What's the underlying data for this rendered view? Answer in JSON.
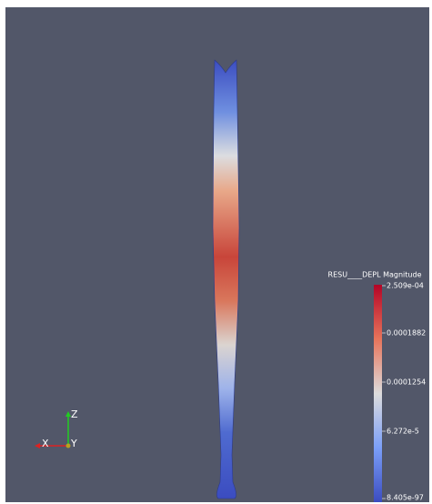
{
  "colorbar": {
    "title": "RESU____DEPL Magnitude",
    "labels": [
      "2.509e-04",
      "0.0001882",
      "0.0001254",
      "6.272e-5",
      "8.405e-97"
    ]
  },
  "axes": {
    "x": "X",
    "y": "Y",
    "z": "Z"
  }
}
